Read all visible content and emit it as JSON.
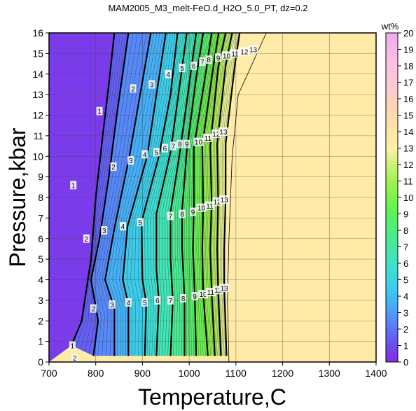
{
  "chart_data": {
    "type": "heatmap",
    "title": "MAM2005_M3_melt-FeO.d_H2O_5.0_PT, dz=0.2",
    "xlabel": "Temperature,C",
    "ylabel": "Pressure,kbar",
    "xlim": [
      700,
      1400
    ],
    "ylim": [
      0,
      16
    ],
    "xticks": [
      700,
      800,
      900,
      1000,
      1100,
      1200,
      1300,
      1400
    ],
    "yticks": [
      0,
      1,
      2,
      3,
      4,
      5,
      6,
      7,
      8,
      9,
      10,
      11,
      12,
      13,
      14,
      15,
      16
    ],
    "grid": true,
    "colorbar": {
      "label": "wt%",
      "min": 0,
      "max": 20,
      "ticks": [
        0,
        1,
        2,
        3,
        4,
        5,
        6,
        7,
        8,
        9,
        10,
        11,
        12,
        13,
        14,
        15,
        16,
        17,
        18,
        19,
        20
      ],
      "colors": [
        [
          0,
          "#8a2be2"
        ],
        [
          1,
          "#6a4cf0"
        ],
        [
          2,
          "#5c74f6"
        ],
        [
          3,
          "#4f9cf7"
        ],
        [
          4,
          "#3dc0f2"
        ],
        [
          5,
          "#3ad6e0"
        ],
        [
          6,
          "#3fe2c4"
        ],
        [
          7,
          "#45e8a4"
        ],
        [
          8,
          "#4cee7e"
        ],
        [
          9,
          "#5cf05a"
        ],
        [
          10,
          "#7cf24a"
        ],
        [
          11,
          "#a4f24e"
        ],
        [
          12,
          "#cdf27a"
        ],
        [
          13,
          "#fff0a8"
        ],
        [
          14,
          "#ffe6a6"
        ],
        [
          15,
          "#ffd9b0"
        ],
        [
          16,
          "#ffcfc0"
        ],
        [
          17,
          "#ffc8d6"
        ],
        [
          18,
          "#ffc0e4"
        ],
        [
          19,
          "#f7b6ea"
        ],
        [
          20,
          "#efaaf0"
        ]
      ]
    },
    "contour_levels_labeled": [
      1,
      2,
      3,
      4,
      5,
      6,
      7,
      8,
      9,
      10,
      11,
      12,
      13
    ],
    "contours": [
      {
        "level": 1,
        "points": [
          [
            748,
            0.8
          ],
          [
            770,
            2.0
          ],
          [
            790,
            5.0
          ],
          [
            800,
            8.0
          ],
          [
            815,
            11.0
          ],
          [
            828,
            13.5
          ],
          [
            840,
            16.0
          ]
        ]
      },
      {
        "level": 2,
        "points": [
          [
            795,
            0.3
          ],
          [
            805,
            2.0
          ],
          [
            790,
            4.0
          ],
          [
            808,
            6.0
          ],
          [
            828,
            9.0
          ],
          [
            845,
            12.0
          ],
          [
            870,
            16.0
          ]
        ]
      },
      {
        "level": 3,
        "points": [
          [
            840,
            0.3
          ],
          [
            840,
            2.6
          ],
          [
            820,
            4.0
          ],
          [
            840,
            6.5
          ],
          [
            872,
            10.0
          ],
          [
            895,
            13.0
          ],
          [
            918,
            16.0
          ]
        ]
      },
      {
        "level": 4,
        "points": [
          [
            870,
            0.3
          ],
          [
            870,
            2.8
          ],
          [
            858,
            4.0
          ],
          [
            868,
            6.6
          ],
          [
            910,
            10.0
          ],
          [
            930,
            13.0
          ],
          [
            950,
            16.0
          ]
        ]
      },
      {
        "level": 5,
        "points": [
          [
            905,
            0.3
          ],
          [
            908,
            2.9
          ],
          [
            900,
            4.0
          ],
          [
            898,
            6.8
          ],
          [
            935,
            10.0
          ],
          [
            960,
            13.0
          ],
          [
            975,
            16.0
          ]
        ]
      },
      {
        "level": 6,
        "points": [
          [
            930,
            0.3
          ],
          [
            935,
            3.0
          ],
          [
            930,
            4.5
          ],
          [
            930,
            7.2
          ],
          [
            960,
            10.2
          ],
          [
            980,
            13.5
          ],
          [
            995,
            16.0
          ]
        ]
      },
      {
        "level": 7,
        "points": [
          [
            960,
            0.3
          ],
          [
            965,
            3.0
          ],
          [
            960,
            5.0
          ],
          [
            960,
            7.3
          ],
          [
            980,
            10.2
          ],
          [
            1000,
            13.5
          ],
          [
            1015,
            16.0
          ]
        ]
      },
      {
        "level": 8,
        "points": [
          [
            990,
            0.3
          ],
          [
            990,
            3.1
          ],
          [
            985,
            5.5
          ],
          [
            985,
            7.4
          ],
          [
            995,
            10.3
          ],
          [
            1015,
            13.8
          ],
          [
            1030,
            16.0
          ]
        ]
      },
      {
        "level": 9,
        "points": [
          [
            1015,
            0.3
          ],
          [
            1012,
            3.2
          ],
          [
            1008,
            5.5
          ],
          [
            1010,
            7.5
          ],
          [
            1010,
            10.4
          ],
          [
            1035,
            14.0
          ],
          [
            1048,
            16.0
          ]
        ]
      },
      {
        "level": 10,
        "points": [
          [
            1040,
            0.3
          ],
          [
            1030,
            3.3
          ],
          [
            1028,
            5.5
          ],
          [
            1030,
            7.6
          ],
          [
            1028,
            10.5
          ],
          [
            1050,
            14.1
          ],
          [
            1063,
            16.0
          ]
        ]
      },
      {
        "level": 11,
        "points": [
          [
            1055,
            0.3
          ],
          [
            1048,
            3.4
          ],
          [
            1045,
            5.5
          ],
          [
            1048,
            7.8
          ],
          [
            1045,
            10.5
          ],
          [
            1062,
            14.3
          ],
          [
            1078,
            16.0
          ]
        ]
      },
      {
        "level": 12,
        "points": [
          [
            1068,
            0.3
          ],
          [
            1062,
            3.5
          ],
          [
            1060,
            5.5
          ],
          [
            1062,
            7.9
          ],
          [
            1060,
            10.6
          ],
          [
            1078,
            14.4
          ],
          [
            1092,
            16.0
          ]
        ]
      },
      {
        "level": 13,
        "points": [
          [
            1080,
            0.3
          ],
          [
            1075,
            3.6
          ],
          [
            1075,
            5.5
          ],
          [
            1078,
            8.0
          ],
          [
            1078,
            10.6
          ],
          [
            1098,
            14.5
          ],
          [
            1108,
            16.0
          ]
        ]
      }
    ],
    "solidus_boundary": [
      [
        1085,
        0.0
      ],
      [
        1082,
        3.0
      ],
      [
        1085,
        6.0
      ],
      [
        1092,
        10.0
      ],
      [
        1105,
        13.0
      ],
      [
        1165,
        16.0
      ]
    ],
    "max_fill_value_beyond_boundary": 13.5,
    "contour_labels": [
      {
        "text": "1",
        "x": 750,
        "y": 0.8
      },
      {
        "text": "2",
        "x": 755,
        "y": 0.2
      },
      {
        "text": "1",
        "x": 752,
        "y": 8.6
      },
      {
        "text": "1",
        "x": 808,
        "y": 12.2
      },
      {
        "text": "2",
        "x": 795,
        "y": 2.6
      },
      {
        "text": "2",
        "x": 780,
        "y": 6.0
      },
      {
        "text": "2",
        "x": 838,
        "y": 9.5
      },
      {
        "text": "2",
        "x": 880,
        "y": 13.3
      },
      {
        "text": "3",
        "x": 835,
        "y": 2.8
      },
      {
        "text": "3",
        "x": 818,
        "y": 6.4
      },
      {
        "text": "3",
        "x": 875,
        "y": 9.8
      },
      {
        "text": "3",
        "x": 920,
        "y": 13.5
      },
      {
        "text": "4",
        "x": 870,
        "y": 2.9
      },
      {
        "text": "4",
        "x": 858,
        "y": 6.6
      },
      {
        "text": "4",
        "x": 905,
        "y": 10.1
      },
      {
        "text": "4",
        "x": 955,
        "y": 14.0
      },
      {
        "text": "5",
        "x": 905,
        "y": 2.9
      },
      {
        "text": "5",
        "x": 895,
        "y": 6.8
      },
      {
        "text": "5",
        "x": 930,
        "y": 10.2
      },
      {
        "text": "5",
        "x": 985,
        "y": 14.3
      },
      {
        "text": "6",
        "x": 932,
        "y": 3.0
      },
      {
        "text": "6",
        "x": 948,
        "y": 10.4
      },
      {
        "text": "6",
        "x": 1010,
        "y": 14.4
      },
      {
        "text": "7",
        "x": 960,
        "y": 3.0
      },
      {
        "text": "7",
        "x": 960,
        "y": 7.1
      },
      {
        "text": "7",
        "x": 966,
        "y": 10.5
      },
      {
        "text": "7",
        "x": 1028,
        "y": 14.6
      },
      {
        "text": "8",
        "x": 987,
        "y": 3.1
      },
      {
        "text": "8",
        "x": 985,
        "y": 7.2
      },
      {
        "text": "8",
        "x": 980,
        "y": 10.6
      },
      {
        "text": "8",
        "x": 1042,
        "y": 14.7
      },
      {
        "text": "9",
        "x": 1012,
        "y": 3.2
      },
      {
        "text": "9",
        "x": 1008,
        "y": 7.3
      },
      {
        "text": "9",
        "x": 995,
        "y": 10.6
      },
      {
        "text": "9",
        "x": 1062,
        "y": 14.8
      },
      {
        "text": "10",
        "x": 1030,
        "y": 3.3
      },
      {
        "text": "10",
        "x": 1026,
        "y": 7.5
      },
      {
        "text": "10",
        "x": 1020,
        "y": 10.7
      },
      {
        "text": "10",
        "x": 1080,
        "y": 14.9
      },
      {
        "text": "11",
        "x": 1046,
        "y": 3.4
      },
      {
        "text": "11",
        "x": 1044,
        "y": 7.6
      },
      {
        "text": "11",
        "x": 1040,
        "y": 10.9
      },
      {
        "text": "11",
        "x": 1098,
        "y": 15.0
      },
      {
        "text": "12",
        "x": 1062,
        "y": 3.5
      },
      {
        "text": "12",
        "x": 1060,
        "y": 7.8
      },
      {
        "text": "12",
        "x": 1058,
        "y": 11.1
      },
      {
        "text": "12",
        "x": 1118,
        "y": 15.1
      },
      {
        "text": "13",
        "x": 1075,
        "y": 3.6
      },
      {
        "text": "13",
        "x": 1075,
        "y": 7.9
      },
      {
        "text": "13",
        "x": 1073,
        "y": 11.2
      },
      {
        "text": "13",
        "x": 1137,
        "y": 15.2
      }
    ]
  }
}
